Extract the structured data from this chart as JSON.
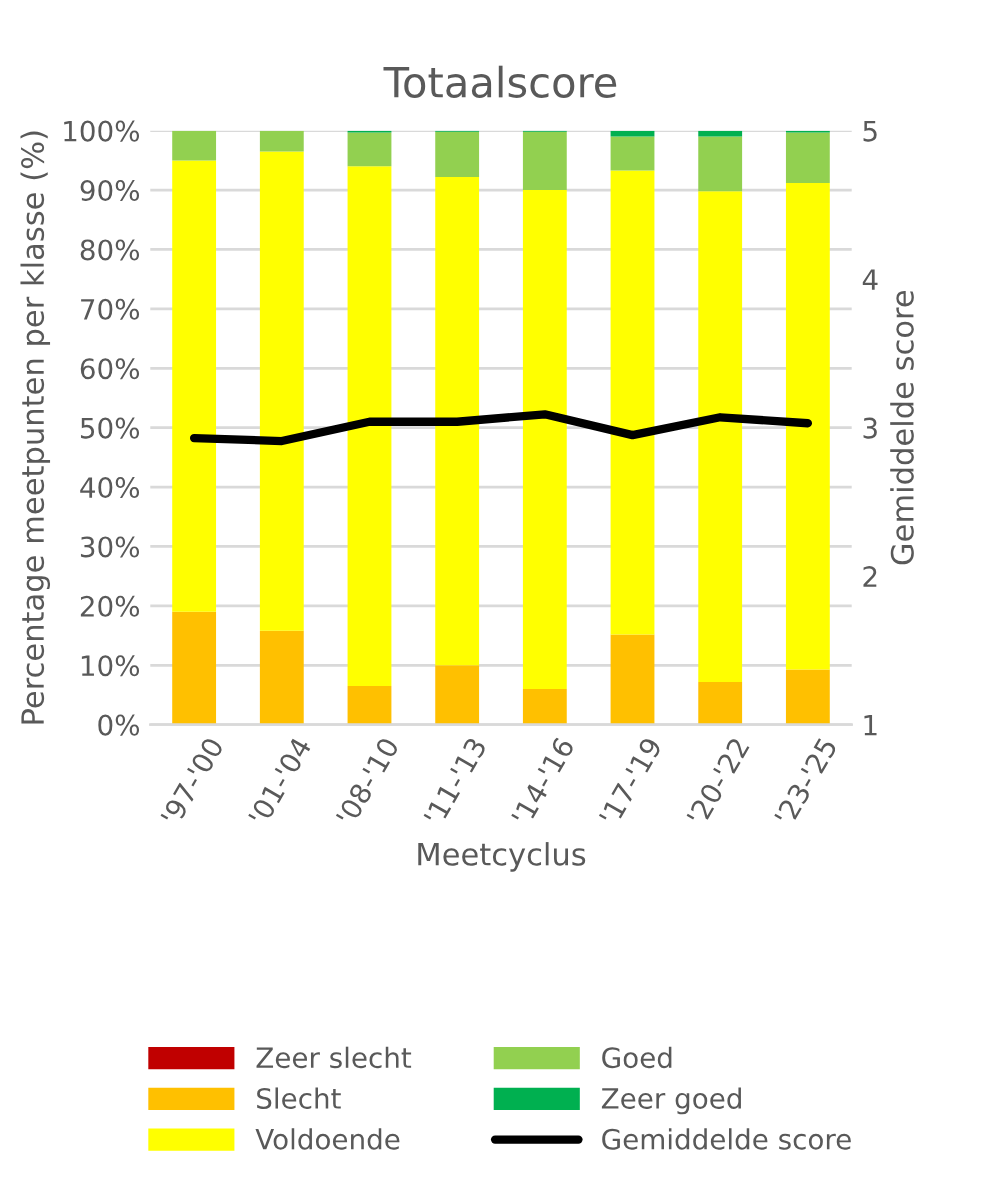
{
  "chart_data": {
    "type": "bar",
    "title": "Totaalscore",
    "xlabel": "Meetcyclus",
    "ylabel": "Percentage meetpunten per klasse (%)",
    "y2label": "Gemiddelde score",
    "categories": [
      "'97-'00",
      "'01-'04",
      "'08-'10",
      "'11-'13",
      "'14-'16",
      "'17-'19",
      "'20-'22",
      "'23-'25"
    ],
    "stacked": true,
    "series": [
      {
        "name": "Zeer slecht",
        "color": "#c00000",
        "values": [
          0,
          0,
          0,
          0,
          0,
          0,
          0,
          0
        ]
      },
      {
        "name": "Slecht",
        "color": "#ffc000",
        "values": [
          19,
          15.8,
          6.5,
          10,
          6,
          15.2,
          7.2,
          9.3
        ]
      },
      {
        "name": "Voldoende",
        "color": "#ffff00",
        "values": [
          76,
          80.7,
          87.5,
          82.2,
          84,
          78.1,
          82.6,
          81.9
        ]
      },
      {
        "name": "Goed",
        "color": "#92d050",
        "values": [
          5,
          3.5,
          5.7,
          7.6,
          9.8,
          5.7,
          9.2,
          8.5
        ]
      },
      {
        "name": "Zeer goed",
        "color": "#00b050",
        "values": [
          0,
          0,
          0.3,
          0.2,
          0.2,
          1,
          1,
          0.3
        ]
      },
      {
        "name": "Gemiddelde score",
        "color": "#000000",
        "type": "line",
        "axis": "y2",
        "values": [
          2.93,
          2.91,
          3.04,
          3.04,
          3.09,
          2.95,
          3.07,
          3.03
        ]
      }
    ],
    "ylim": [
      0,
      100
    ],
    "yticks": [
      {
        "value": 0,
        "label": "0%"
      },
      {
        "value": 10,
        "label": "10%"
      },
      {
        "value": 20,
        "label": "20%"
      },
      {
        "value": 30,
        "label": "30%"
      },
      {
        "value": 40,
        "label": "40%"
      },
      {
        "value": 50,
        "label": "50%"
      },
      {
        "value": 60,
        "label": "60%"
      },
      {
        "value": 70,
        "label": "70%"
      },
      {
        "value": 80,
        "label": "80%"
      },
      {
        "value": 90,
        "label": "90%"
      },
      {
        "value": 100,
        "label": "100%"
      }
    ],
    "y2lim": [
      1,
      5
    ],
    "y2ticks": [
      1,
      2,
      3,
      4,
      5
    ],
    "grid": "y",
    "legend": "bottom"
  }
}
